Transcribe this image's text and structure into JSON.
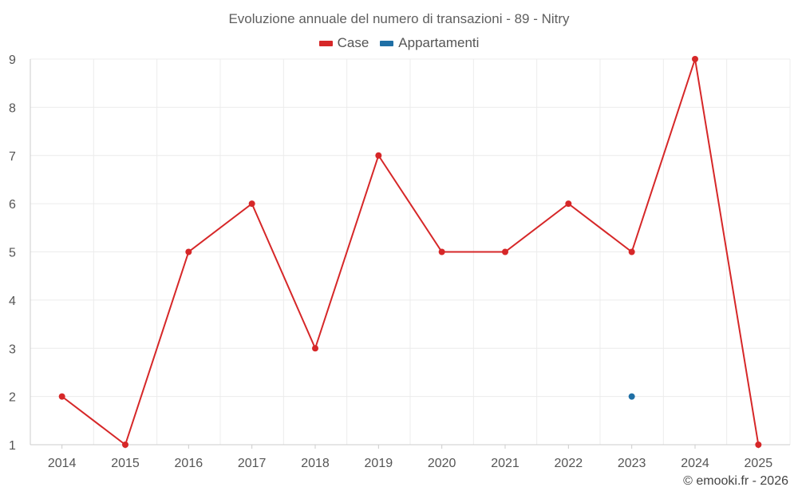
{
  "chart_data": {
    "type": "line",
    "title": "Evoluzione annuale del numero di transazioni - 89 - Nitry",
    "xlabel": "",
    "ylabel": "",
    "categories": [
      "2014",
      "2015",
      "2016",
      "2017",
      "2018",
      "2019",
      "2020",
      "2021",
      "2022",
      "2023",
      "2024",
      "2025"
    ],
    "yticks": [
      "1",
      "2",
      "3",
      "4",
      "5",
      "6",
      "7",
      "8",
      "9"
    ],
    "ylim": [
      1,
      9
    ],
    "grid": true,
    "legend_position": "top-center",
    "series": [
      {
        "name": "Case",
        "color": "#d62728",
        "values": [
          2,
          1,
          5,
          6,
          3,
          7,
          5,
          5,
          6,
          5,
          9,
          1
        ]
      },
      {
        "name": "Appartamenti",
        "color": "#1f6fa5",
        "values": [
          null,
          null,
          null,
          null,
          null,
          null,
          null,
          null,
          null,
          2,
          null,
          null
        ]
      }
    ]
  },
  "credit": "© emooki.fr - 2026"
}
